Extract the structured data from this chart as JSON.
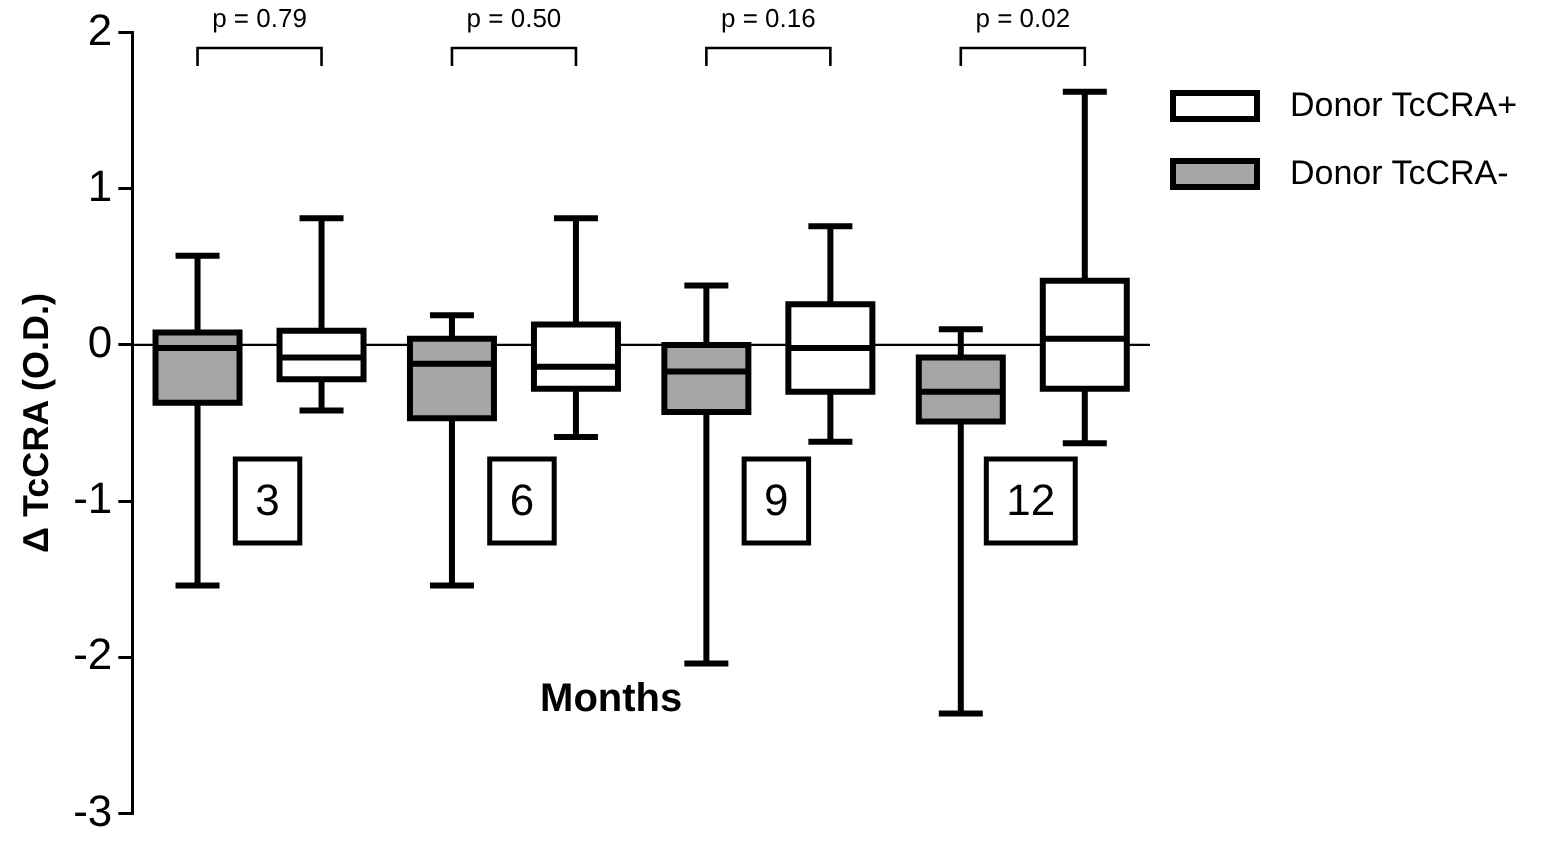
{
  "chart_data": {
    "type": "box",
    "xlabel": "Months",
    "ylabel": "Δ TcCRA (O.D.)",
    "categories": [
      "3",
      "6",
      "9",
      "12"
    ],
    "series": [
      {
        "name": "Donor TcCRA-",
        "color": "#a6a6a6",
        "boxes": [
          {
            "low": -1.54,
            "q1": -0.37,
            "median": -0.02,
            "q3": 0.08,
            "high": 0.57
          },
          {
            "low": -1.54,
            "q1": -0.47,
            "median": -0.12,
            "q3": 0.04,
            "high": 0.19
          },
          {
            "low": -2.04,
            "q1": -0.43,
            "median": -0.17,
            "q3": 0.0,
            "high": 0.38
          },
          {
            "low": -2.36,
            "q1": -0.49,
            "median": -0.3,
            "q3": -0.08,
            "high": 0.1
          }
        ]
      },
      {
        "name": "Donor TcCRA+",
        "color": "#ffffff",
        "boxes": [
          {
            "low": -0.42,
            "q1": -0.22,
            "median": -0.08,
            "q3": 0.09,
            "high": 0.81
          },
          {
            "low": -0.59,
            "q1": -0.28,
            "median": -0.14,
            "q3": 0.13,
            "high": 0.81
          },
          {
            "low": -0.62,
            "q1": -0.3,
            "median": -0.02,
            "q3": 0.26,
            "high": 0.76
          },
          {
            "low": -0.63,
            "q1": -0.28,
            "median": 0.04,
            "q3": 0.41,
            "high": 1.62
          }
        ]
      }
    ],
    "ylim": [
      -3,
      2
    ],
    "yticks": [
      -3,
      -2,
      -1,
      0,
      1,
      2
    ],
    "ref_lines": [
      {
        "axis": "y",
        "value": 0,
        "color": "#000000"
      }
    ],
    "annotations": [
      "p = 0.79",
      "p = 0.50",
      "p = 0.16",
      "p = 0.02"
    ],
    "grid": false,
    "legend": "top right"
  }
}
